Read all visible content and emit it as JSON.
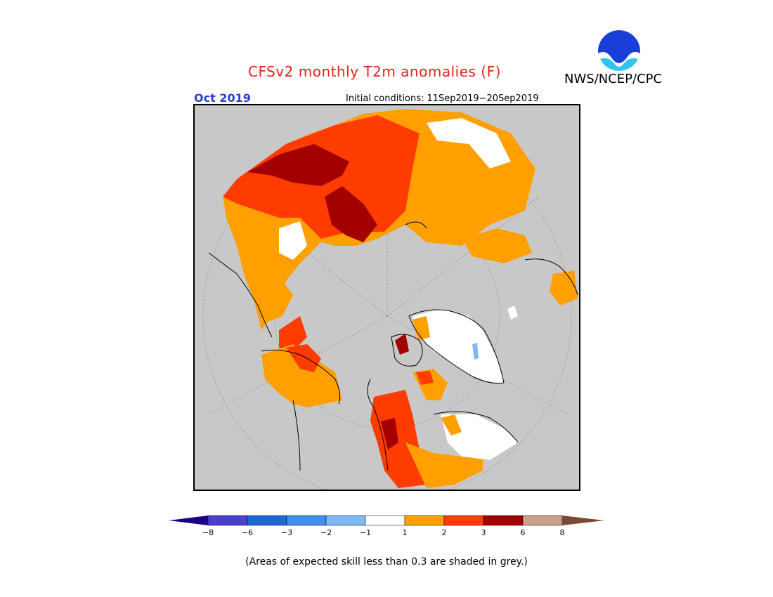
{
  "header": {
    "title": "CFSv2 monthly T2m anomalies (F)",
    "agency": "NWS/NCEP/CPC",
    "logo_text": "NOAA",
    "valid_month": "Oct 2019",
    "initial_conditions": "Initial conditions: 11Sep2019−20Sep2019"
  },
  "legend": {
    "unit": "F",
    "tick_labels": [
      "−8",
      "−6",
      "−3",
      "−2",
      "−1",
      "1",
      "2",
      "3",
      "6",
      "8"
    ],
    "colors": [
      "#1b0087",
      "#4b3fd1",
      "#1f67d2",
      "#3f8ff0",
      "#7fb8f4",
      "#ffffff",
      "#ffa000",
      "#ff3c00",
      "#a30000",
      "#c8a08c",
      "#7a4a34"
    ],
    "note": "(Areas of expected skill less than 0.3 are shaded in grey.)"
  },
  "map": {
    "projection": "north polar stereographic",
    "skill_mask_color": "#c8c8c8"
  }
}
